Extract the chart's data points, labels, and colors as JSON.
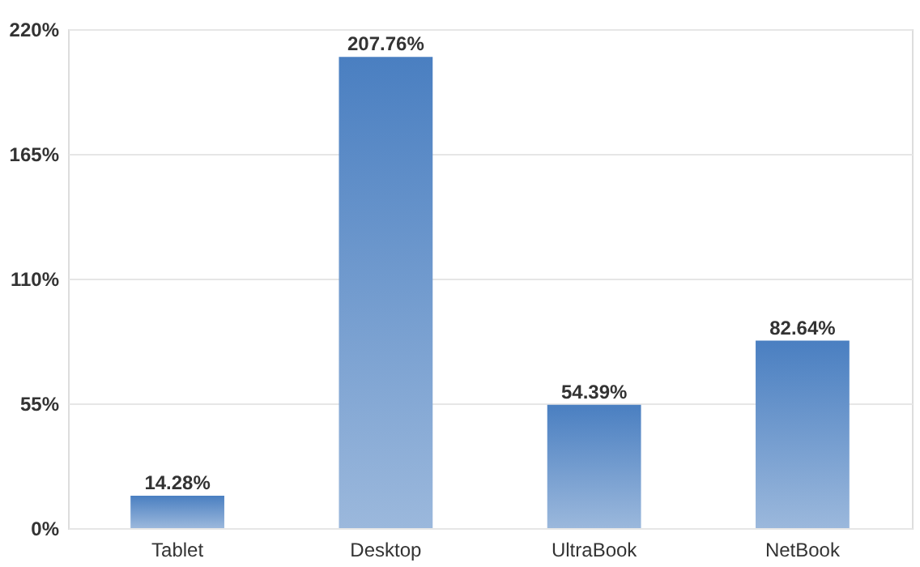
{
  "chart_data": {
    "type": "bar",
    "categories": [
      "Tablet",
      "Desktop",
      "UltraBook",
      "NetBook"
    ],
    "values": [
      14.28,
      207.76,
      54.39,
      82.64
    ],
    "value_labels": [
      "14.28%",
      "207.76%",
      "54.39%",
      "82.64%"
    ],
    "color": "#4a7fc1",
    "ylim": [
      0,
      220
    ],
    "yticks": [
      {
        "value": 0,
        "label": "0%"
      },
      {
        "value": 55,
        "label": "55%"
      },
      {
        "value": 110,
        "label": "110%"
      },
      {
        "value": 165,
        "label": "165%"
      },
      {
        "value": 220,
        "label": "220%"
      }
    ],
    "grid": "y"
  }
}
